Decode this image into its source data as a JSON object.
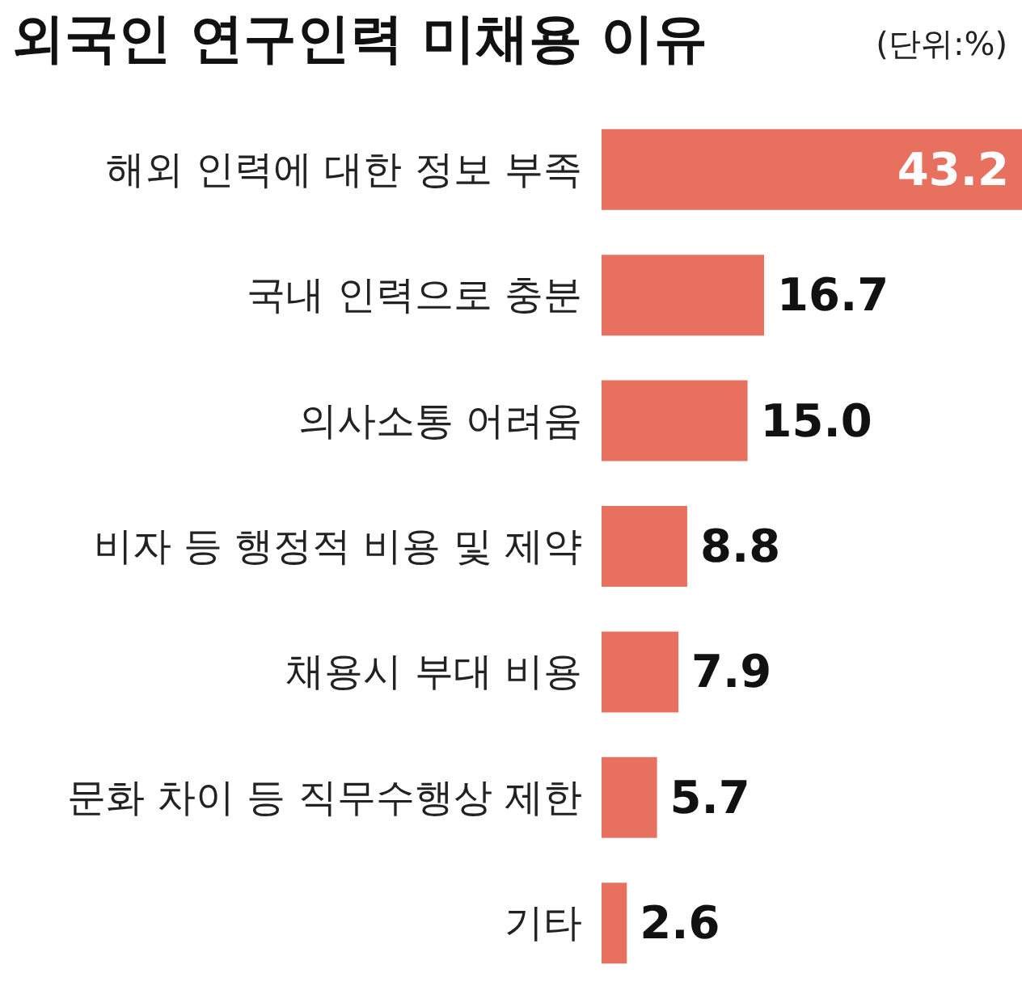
{
  "chart_data": {
    "type": "bar",
    "orientation": "horizontal",
    "title": "외국인 연구인력 미채용 이유",
    "subtitle": "(단위:%)",
    "categories": [
      "해외 인력에 대한 정보 부족",
      "국내 인력으로 충분",
      "의사소통 어려움",
      "비자 등 행정적 비용 및 제약",
      "채용시 부대 비용",
      "문화 차이 등 직무수행상 제한",
      "기타"
    ],
    "values": [
      43.2,
      16.7,
      15.0,
      8.8,
      7.9,
      5.7,
      2.6
    ],
    "value_labels": [
      "43.2",
      "16.7",
      "15.0",
      "8.8",
      "7.9",
      "5.7",
      "2.6"
    ],
    "color": "#e8705f",
    "grid": false
  }
}
